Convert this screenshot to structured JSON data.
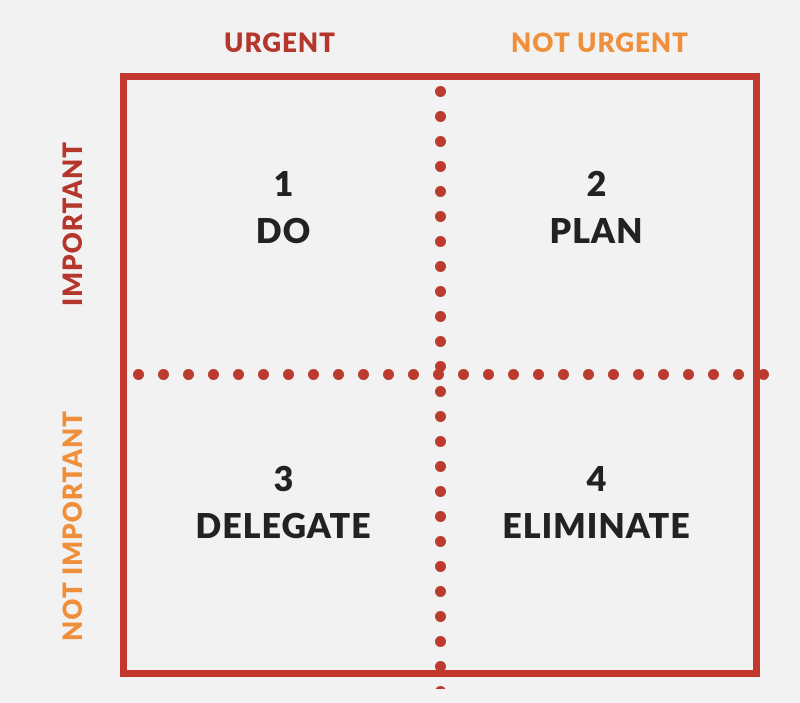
{
  "type": "matrix-2x2",
  "background_color": "#f2f2f2",
  "border_color": "#c2382f",
  "divider_dot_color": "#bb3b2e",
  "text_color": "#272727",
  "header_fontsize": 26,
  "cell_fontsize": 34,
  "columns": [
    {
      "label": "URGENT",
      "color": "#b4362c"
    },
    {
      "label": "NOT URGENT",
      "color": "#ef8f3c"
    }
  ],
  "rows": [
    {
      "label": "IMPORTANT",
      "color": "#b4362c"
    },
    {
      "label": "NOT IMPORTANT",
      "color": "#ef8f3c"
    }
  ],
  "cells": [
    {
      "number": "1",
      "label": "DO"
    },
    {
      "number": "2",
      "label": "PLAN"
    },
    {
      "number": "3",
      "label": "DELEGATE"
    },
    {
      "number": "4",
      "label": "ELIMINATE"
    }
  ],
  "divider_dot_count_h": 28,
  "divider_dot_count_v": 26
}
